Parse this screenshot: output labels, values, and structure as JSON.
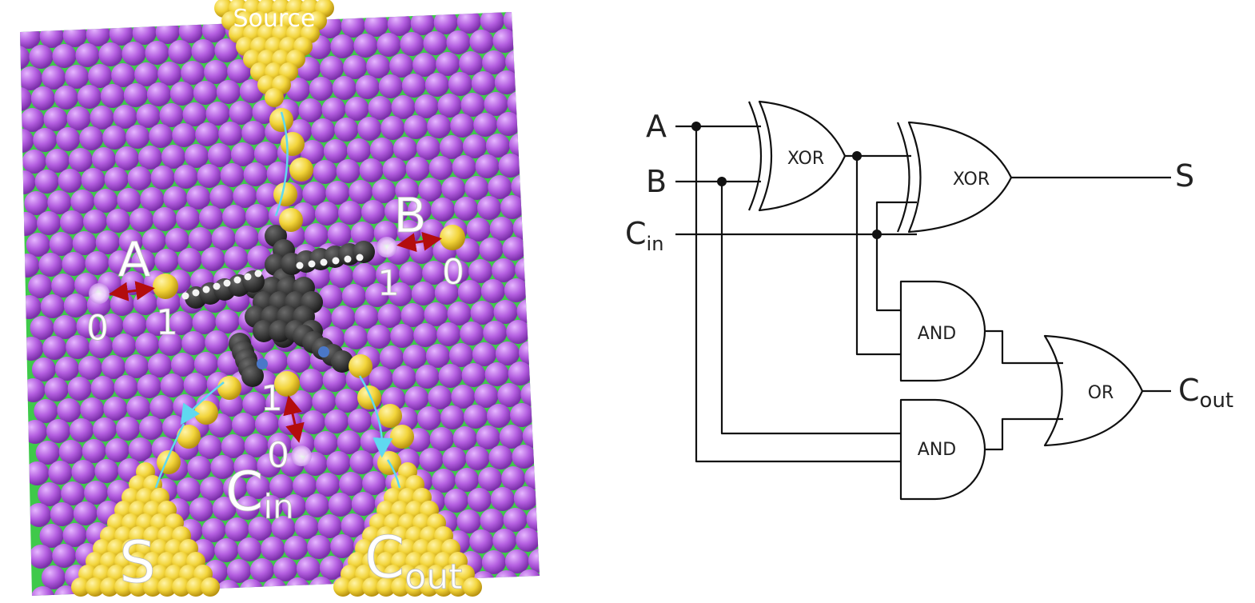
{
  "colors": {
    "surface_purple": "#b45ee0",
    "surface_purple_dark": "#8a3ab8",
    "surface_green": "#3fc94a",
    "gold": "#f2d43a",
    "gold_dark": "#c9a419",
    "molecule": "#3b3b3b",
    "arrow_red": "#b30d0d",
    "flow_cyan": "#5fd9f0",
    "wire": "#111111"
  },
  "molecular": {
    "source_label": "Source",
    "input_a": {
      "name": "A",
      "state_off": "0",
      "state_on": "1"
    },
    "input_b": {
      "name": "B",
      "state_off": "0",
      "state_on": "1"
    },
    "input_cin": {
      "name": "C",
      "sub": "in",
      "state_off": "0",
      "state_on": "1"
    },
    "output_s": "S",
    "output_cout": {
      "name": "C",
      "sub": "out"
    }
  },
  "circuit": {
    "inputs": [
      {
        "name": "A",
        "sub": ""
      },
      {
        "name": "B",
        "sub": ""
      },
      {
        "name": "C",
        "sub": "in"
      }
    ],
    "gates": [
      {
        "id": "xor1",
        "label": "XOR"
      },
      {
        "id": "xor2",
        "label": "XOR"
      },
      {
        "id": "and1",
        "label": "AND"
      },
      {
        "id": "and2",
        "label": "AND"
      },
      {
        "id": "or1",
        "label": "OR"
      }
    ],
    "outputs": [
      {
        "name": "S",
        "sub": ""
      },
      {
        "name": "C",
        "sub": "out"
      }
    ]
  }
}
